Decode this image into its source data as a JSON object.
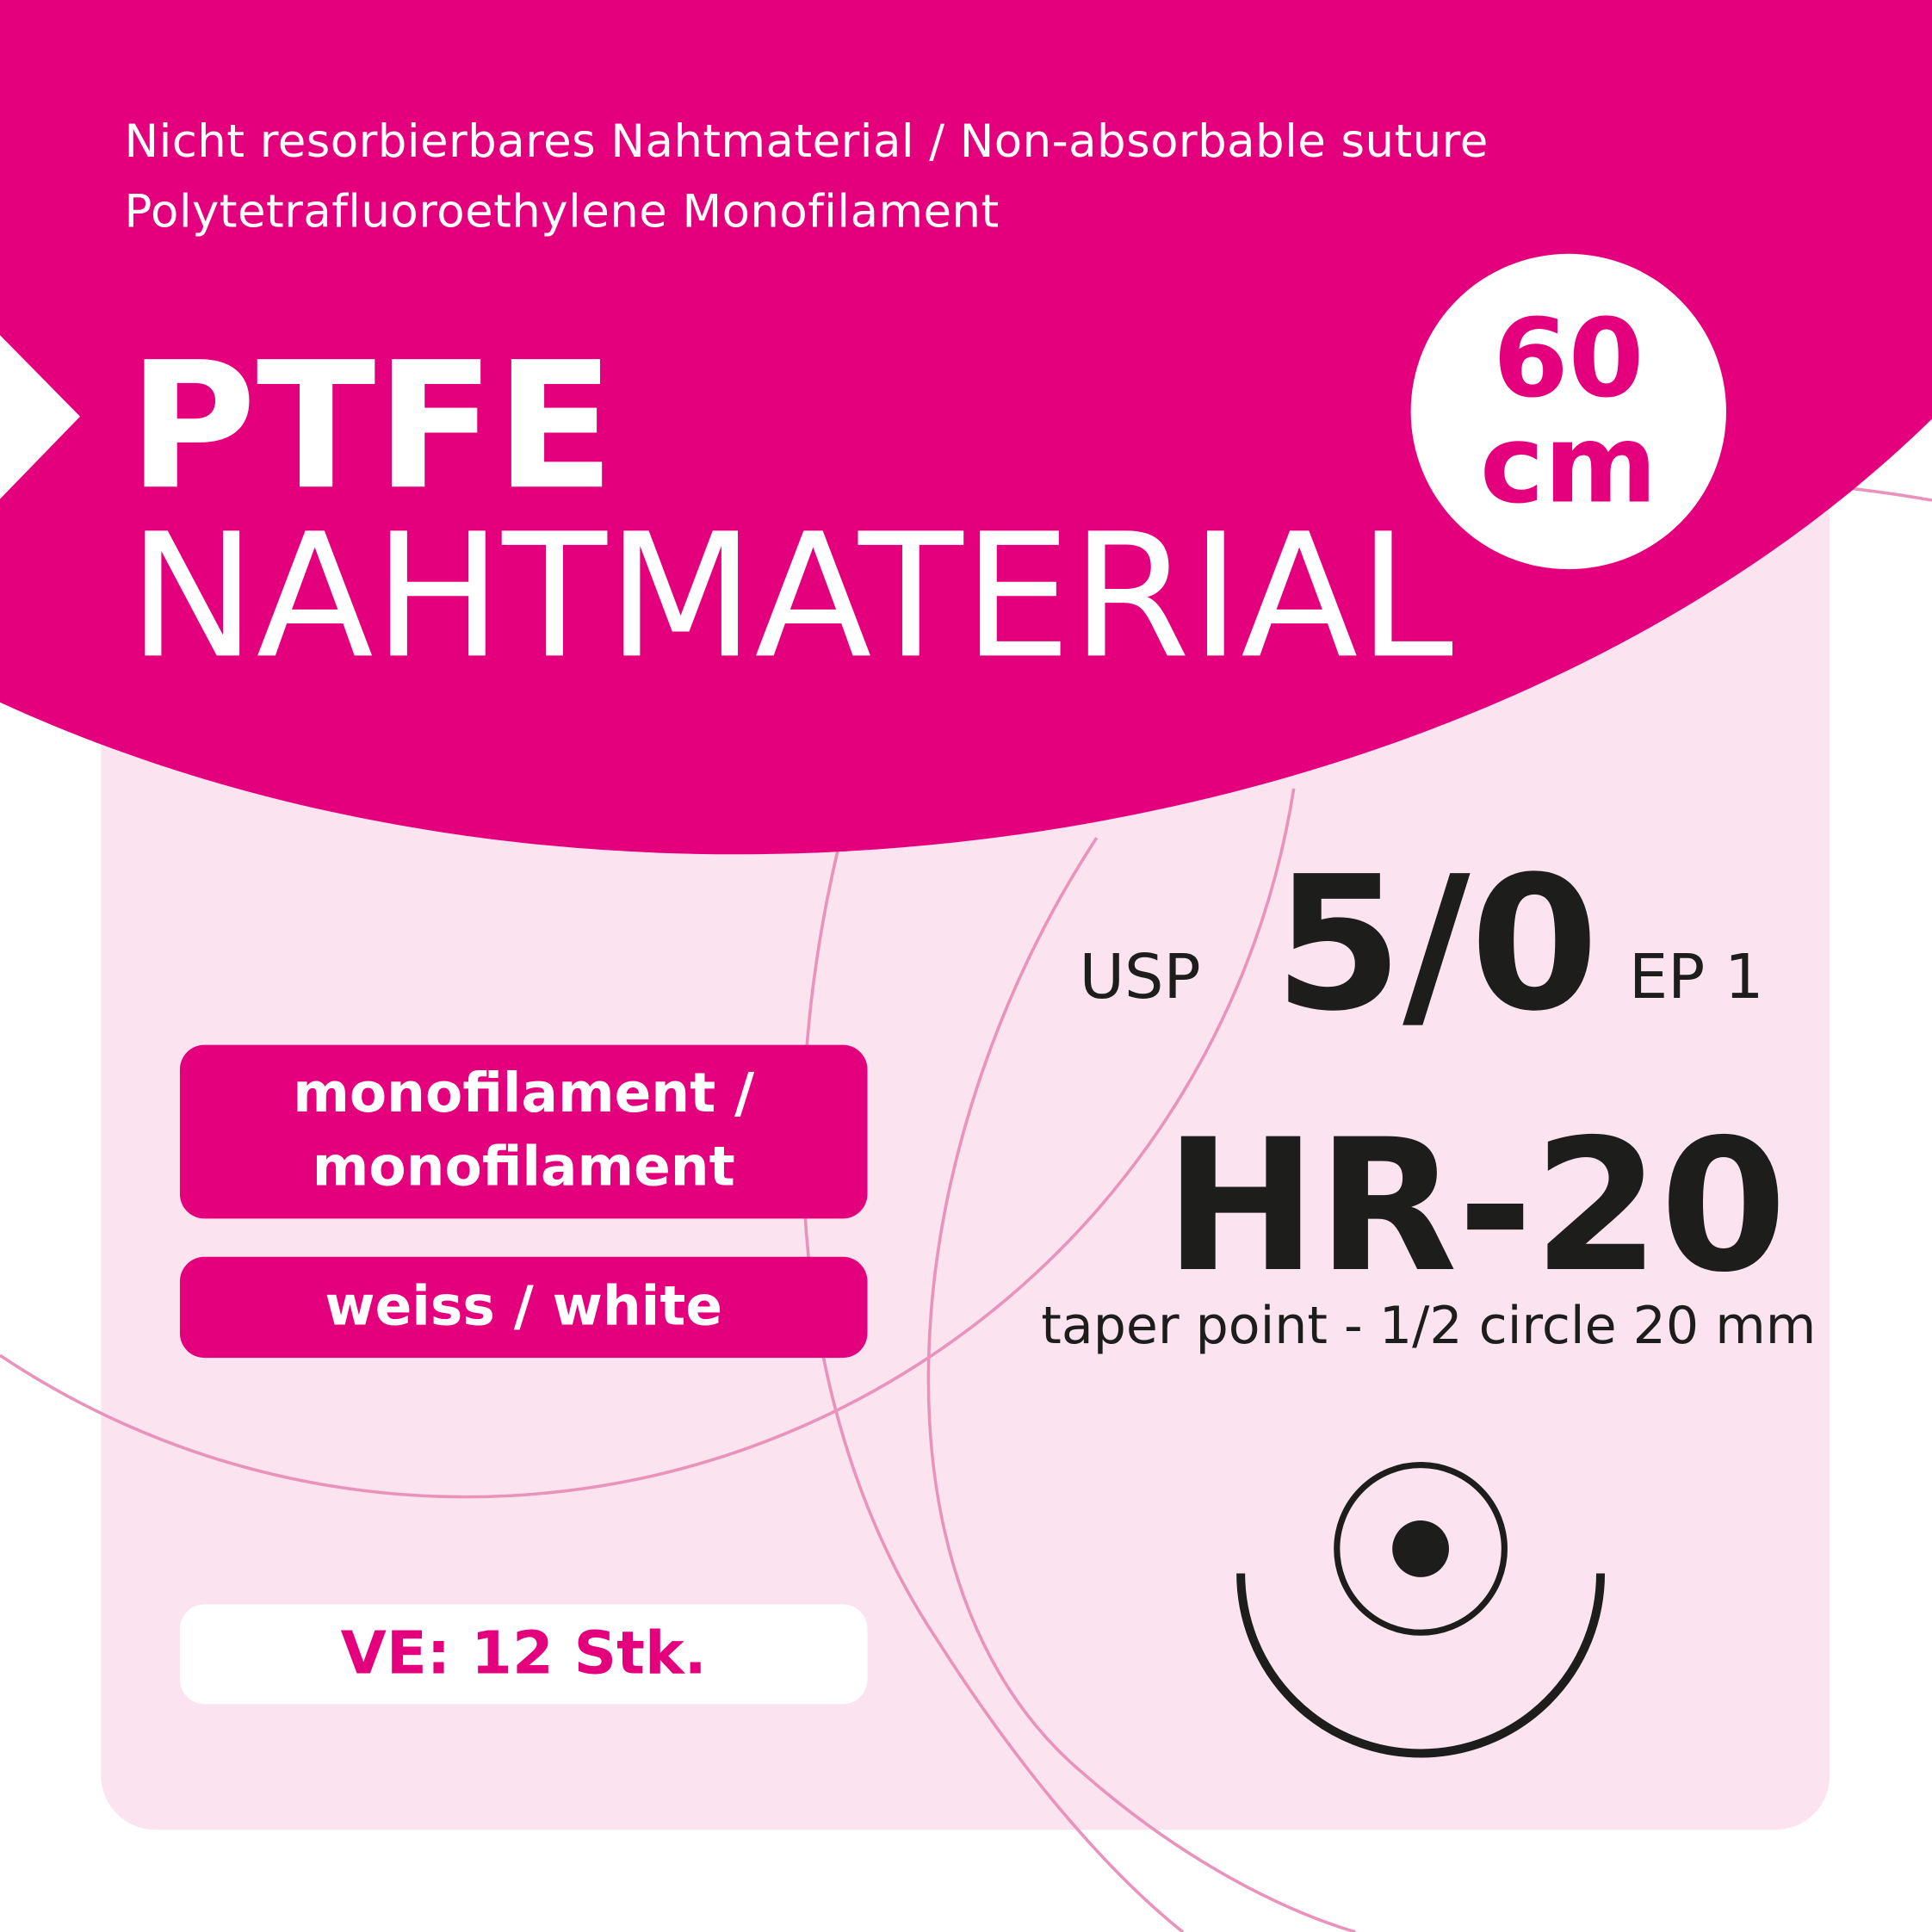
{
  "header": {
    "subtitle_line1": "Nicht resorbierbares Nahtmaterial / Non-absorbable suture",
    "subtitle_line2": "Polytetrafluoroethylene Monofilament",
    "title_bold": "PTFE",
    "title_regular": "NAHTMATERIAL"
  },
  "length_badge": {
    "value": "60",
    "unit": "cm"
  },
  "attributes": {
    "filament_line1": "monofilament /",
    "filament_line2": "monofilament",
    "color": "weiss / white"
  },
  "packaging": "VE: 12 Stk.",
  "spec": {
    "usp_label": "USP",
    "usp_size": "5/0",
    "ep": "EP 1",
    "needle_code": "HR-20",
    "needle_description": "taper point - 1/2 circle 20 mm"
  },
  "icons": {
    "needle": "taper-point-half-circle-needle-icon"
  },
  "colors": {
    "brand": "#e4007c",
    "panel": "#fbe3ef",
    "text_dark": "#1d1d1b",
    "lines": "#e892bc"
  }
}
